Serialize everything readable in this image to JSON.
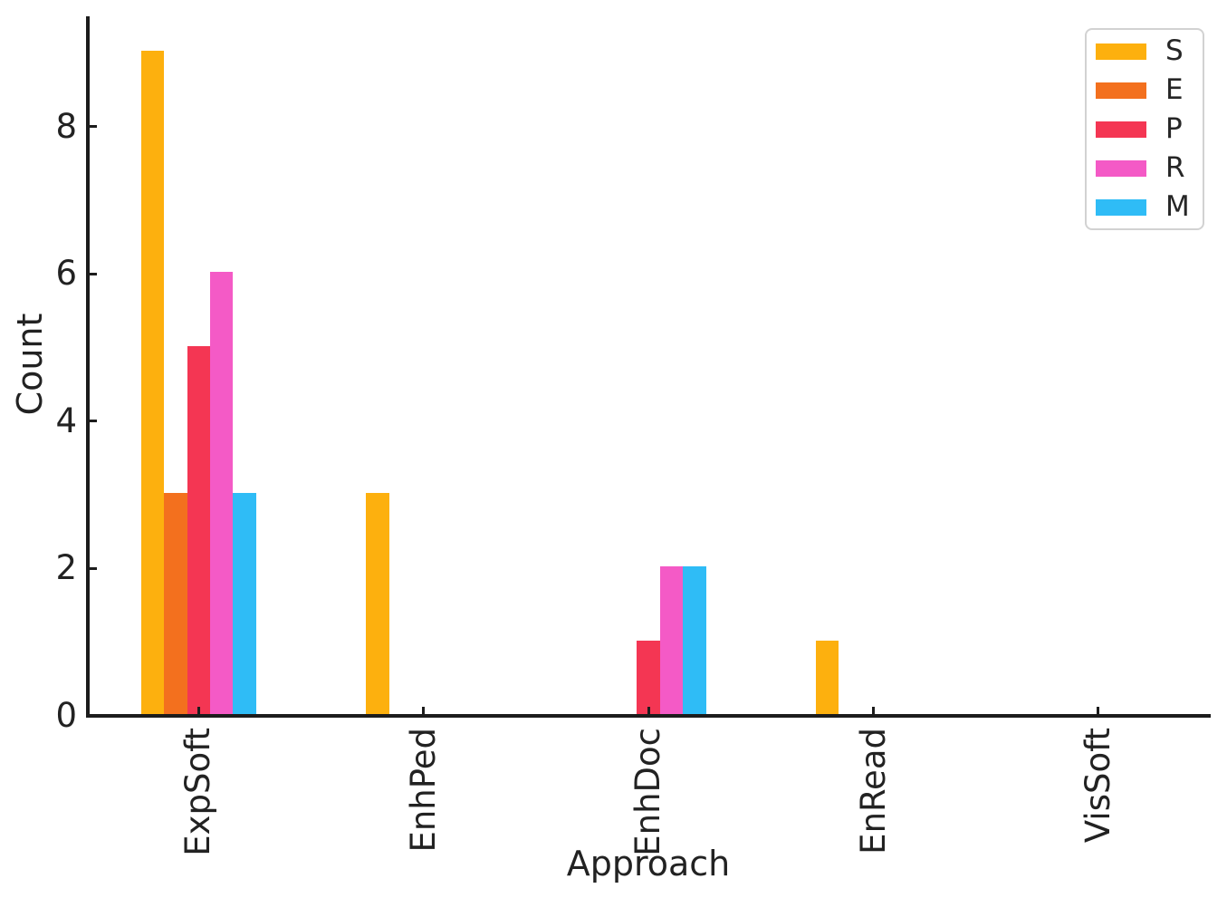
{
  "chart_data": {
    "type": "bar",
    "title": "",
    "xlabel": "Approach",
    "ylabel": "Count",
    "categories": [
      "ExpSoft",
      "EnhPed",
      "EnhDoc",
      "EnRead",
      "VisSoft"
    ],
    "series": [
      {
        "name": "S",
        "color": "#fdb00e",
        "values": [
          9,
          3,
          0,
          1,
          0
        ]
      },
      {
        "name": "E",
        "color": "#f3701e",
        "values": [
          3,
          0,
          0,
          0,
          0
        ]
      },
      {
        "name": "P",
        "color": "#f43653",
        "values": [
          5,
          0,
          1,
          0,
          0
        ]
      },
      {
        "name": "R",
        "color": "#f45ac6",
        "values": [
          6,
          0,
          2,
          0,
          0
        ]
      },
      {
        "name": "M",
        "color": "#2fbcf6",
        "values": [
          3,
          0,
          2,
          0,
          0
        ]
      }
    ],
    "y_ticks": [
      0,
      2,
      4,
      6,
      8
    ],
    "ylim": [
      0,
      9.5
    ],
    "grid": false,
    "legend_position": "upper right",
    "axis_color": "#1c1c1c",
    "text_color": "#222222"
  }
}
